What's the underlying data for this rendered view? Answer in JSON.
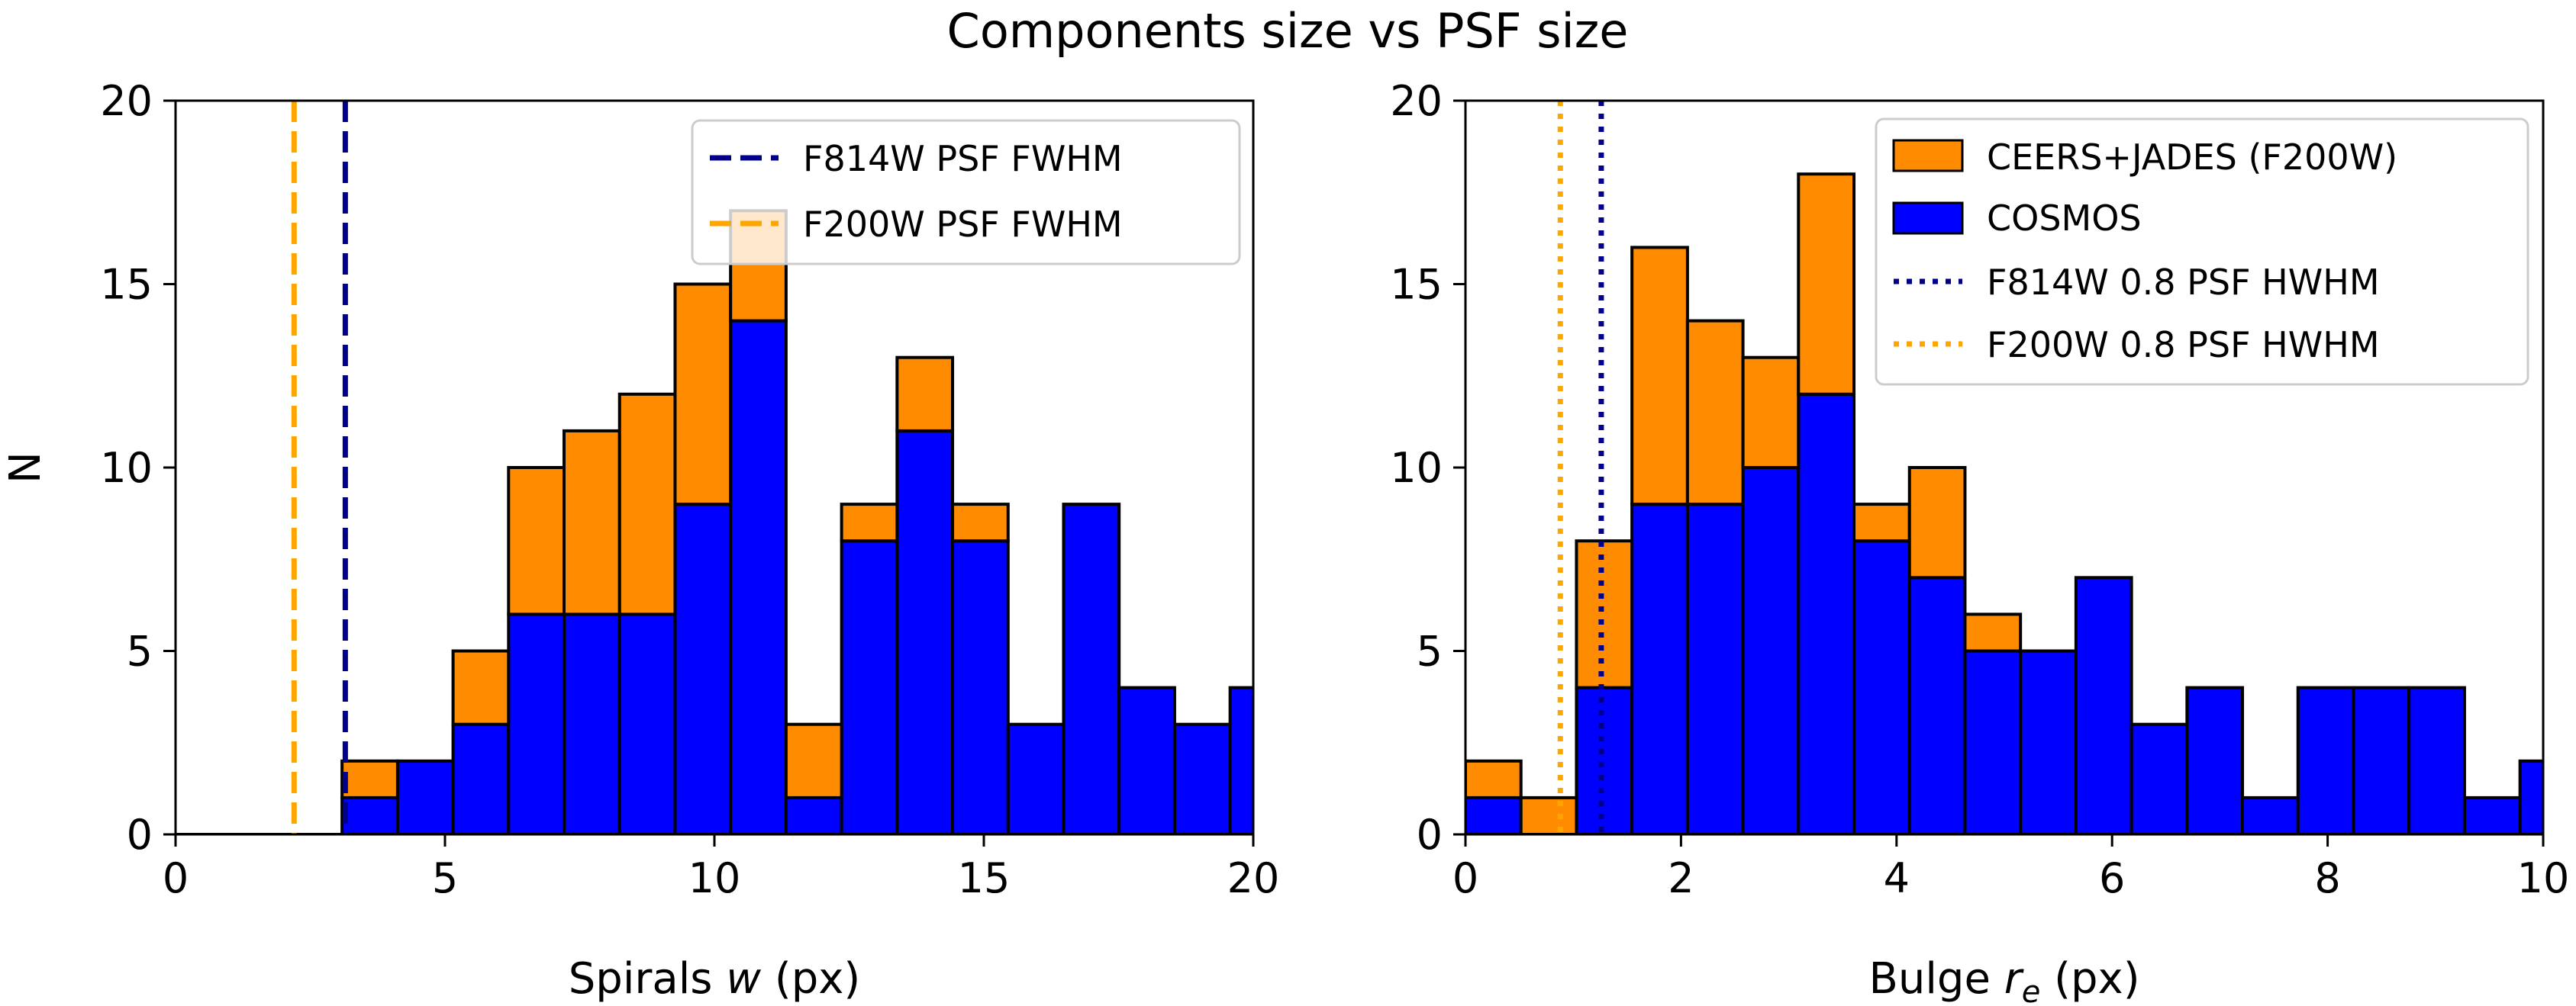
{
  "figure": {
    "suptitle": "Components size vs PSF size"
  },
  "colors": {
    "ceers_jades": "#ff8c00",
    "cosmos": "#0000ff",
    "f814w_line": "#00008b",
    "f200w_line": "#ffa500",
    "edge": "#000000",
    "legend_border": "#cccccc"
  },
  "chart_data": [
    {
      "type": "bar",
      "subtype": "stacked-histogram",
      "xlabel_prefix": "Spirals ",
      "xlabel_var": "w",
      "xlabel_suffix": " (px)",
      "ylabel": "N",
      "xlim": [
        0,
        20
      ],
      "ylim": [
        0,
        20
      ],
      "xticks": [
        "0",
        "5",
        "10",
        "15",
        "20"
      ],
      "yticks": [
        "0",
        "5",
        "10",
        "15",
        "20"
      ],
      "bin_edges": [
        0,
        1.03,
        2.06,
        3.09,
        4.12,
        5.15,
        6.18,
        7.21,
        8.24,
        9.27,
        10.3,
        11.33,
        12.36,
        13.39,
        14.42,
        15.45,
        16.48,
        17.51,
        18.54,
        19.57,
        20.6
      ],
      "series": [
        {
          "name": "COSMOS",
          "color": "#0000ff",
          "values": [
            0,
            0,
            0,
            1,
            2,
            3,
            6,
            6,
            6,
            9,
            14,
            1,
            8,
            11,
            8,
            3,
            9,
            4,
            3,
            4
          ]
        },
        {
          "name": "CEERS+JADES (F200W)",
          "color": "#ff8c00",
          "values": [
            0,
            0,
            0,
            1,
            0,
            2,
            4,
            5,
            6,
            6,
            3,
            2,
            1,
            2,
            1,
            0,
            0,
            0,
            0,
            0
          ]
        }
      ],
      "vlines": [
        {
          "name": "F814W PSF FWHM",
          "x": 3.15,
          "color": "#00008b",
          "style": "dashed"
        },
        {
          "name": "F200W PSF FWHM",
          "x": 2.2,
          "color": "#ffa500",
          "style": "dashed"
        }
      ],
      "legend_placement": "top-right",
      "legend": [
        "F814W PSF FWHM",
        "F200W PSF FWHM"
      ],
      "grid": false
    },
    {
      "type": "bar",
      "subtype": "stacked-histogram",
      "xlabel_prefix": "Bulge ",
      "xlabel_var": "r",
      "xlabel_sub": "e",
      "xlabel_suffix": " (px)",
      "ylabel": "",
      "xlim": [
        0,
        10
      ],
      "ylim": [
        0,
        20
      ],
      "xticks": [
        "0",
        "2",
        "4",
        "6",
        "8",
        "10"
      ],
      "yticks": [
        "0",
        "5",
        "10",
        "15",
        "20"
      ],
      "bin_edges": [
        0,
        0.515,
        1.03,
        1.545,
        2.06,
        2.575,
        3.09,
        3.605,
        4.12,
        4.635,
        5.15,
        5.665,
        6.18,
        6.695,
        7.21,
        7.725,
        8.24,
        8.755,
        9.27,
        9.785,
        10.3
      ],
      "series": [
        {
          "name": "COSMOS",
          "color": "#0000ff",
          "values": [
            1,
            0,
            4,
            9,
            9,
            10,
            12,
            8,
            7,
            5,
            5,
            7,
            3,
            4,
            1,
            4,
            4,
            4,
            1,
            2
          ]
        },
        {
          "name": "CEERS+JADES (F200W)",
          "color": "#ff8c00",
          "values": [
            1,
            1,
            4,
            7,
            5,
            3,
            6,
            1,
            3,
            1,
            0,
            0,
            0,
            0,
            0,
            0,
            0,
            0,
            0,
            0
          ]
        }
      ],
      "vlines": [
        {
          "name": "F814W 0.8 PSF HWHM",
          "x": 1.26,
          "color": "#00008b",
          "style": "dotted"
        },
        {
          "name": "F200W 0.8 PSF HWHM",
          "x": 0.88,
          "color": "#ffa500",
          "style": "dotted"
        }
      ],
      "legend_placement": "top-right",
      "legend": [
        "CEERS+JADES (F200W)",
        "COSMOS",
        "F814W 0.8 PSF HWHM",
        "F200W 0.8 PSF HWHM"
      ],
      "grid": false
    }
  ]
}
